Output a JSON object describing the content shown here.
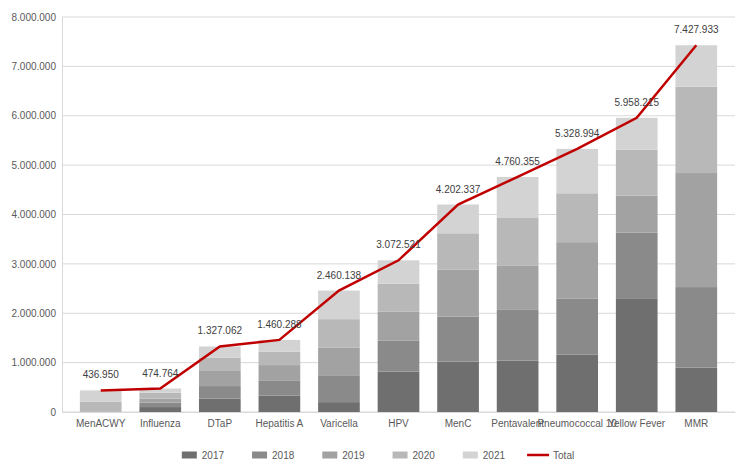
{
  "chart_data": {
    "type": "bar",
    "stacked": true,
    "grid": true,
    "legend": "bottom",
    "categories": [
      "MenACWY",
      "Influenza",
      "DTaP",
      "Hepatitis A",
      "Varicella",
      "HPV",
      "MenC",
      "Pentavalent",
      "Pneumococcal 10",
      "Yellow Fever",
      "MMR"
    ],
    "ylim": [
      0,
      8000000
    ],
    "yticks": [
      0,
      {
        "value": 1000000,
        "label": "1.000.000"
      },
      {
        "value": 2000000,
        "label": "2.000.000"
      },
      {
        "value": 3000000,
        "label": "3.000.000"
      },
      {
        "value": 4000000,
        "label": "4.000.000"
      },
      {
        "value": 5000000,
        "label": "5.000.000"
      },
      {
        "value": 6000000,
        "label": "6.000.000"
      },
      {
        "value": 7000000,
        "label": "7.000.000"
      },
      {
        "value": 8000000,
        "label": "8.000.000"
      }
    ],
    "series": [
      {
        "name": "2017",
        "type": "bar",
        "color": "#6f6f6f",
        "values": [
          0,
          100000,
          270000,
          330000,
          200000,
          820000,
          1020000,
          1040000,
          1160000,
          2290000,
          900000
        ]
      },
      {
        "name": "2018",
        "type": "bar",
        "color": "#8a8a8a",
        "values": [
          0,
          90000,
          255000,
          300000,
          530000,
          630000,
          910000,
          1040000,
          1140000,
          1340000,
          1630000
        ]
      },
      {
        "name": "2019",
        "type": "bar",
        "color": "#a2a2a2",
        "values": [
          10000,
          80000,
          305000,
          320000,
          570000,
          580000,
          950000,
          880000,
          1140000,
          750000,
          2310000
        ]
      },
      {
        "name": "2020",
        "type": "bar",
        "color": "#b8b8b8",
        "values": [
          200000,
          120000,
          270000,
          270000,
          580000,
          570000,
          740000,
          970000,
          990000,
          930000,
          1750000
        ]
      },
      {
        "name": "2021",
        "type": "bar",
        "color": "#d3d3d3",
        "values": [
          226950,
          84764,
          227062,
          240288,
          580138,
          472521,
          582337,
          830355,
          898994,
          648215,
          837933
        ]
      },
      {
        "name": "Total",
        "type": "line",
        "color": "#c00000",
        "data_labels": true,
        "values": [
          436950,
          474764,
          1327062,
          1460288,
          2460138,
          3072521,
          4202337,
          4760355,
          5328994,
          5958215,
          7427933
        ],
        "value_labels": [
          "436.950",
          "474.764",
          "1.327.062",
          "1.460.288",
          "2.460.138",
          "3.072.521",
          "4.202.337",
          "4.760.355",
          "5.328.994",
          "5.958.215",
          "7.427.933"
        ]
      }
    ]
  }
}
